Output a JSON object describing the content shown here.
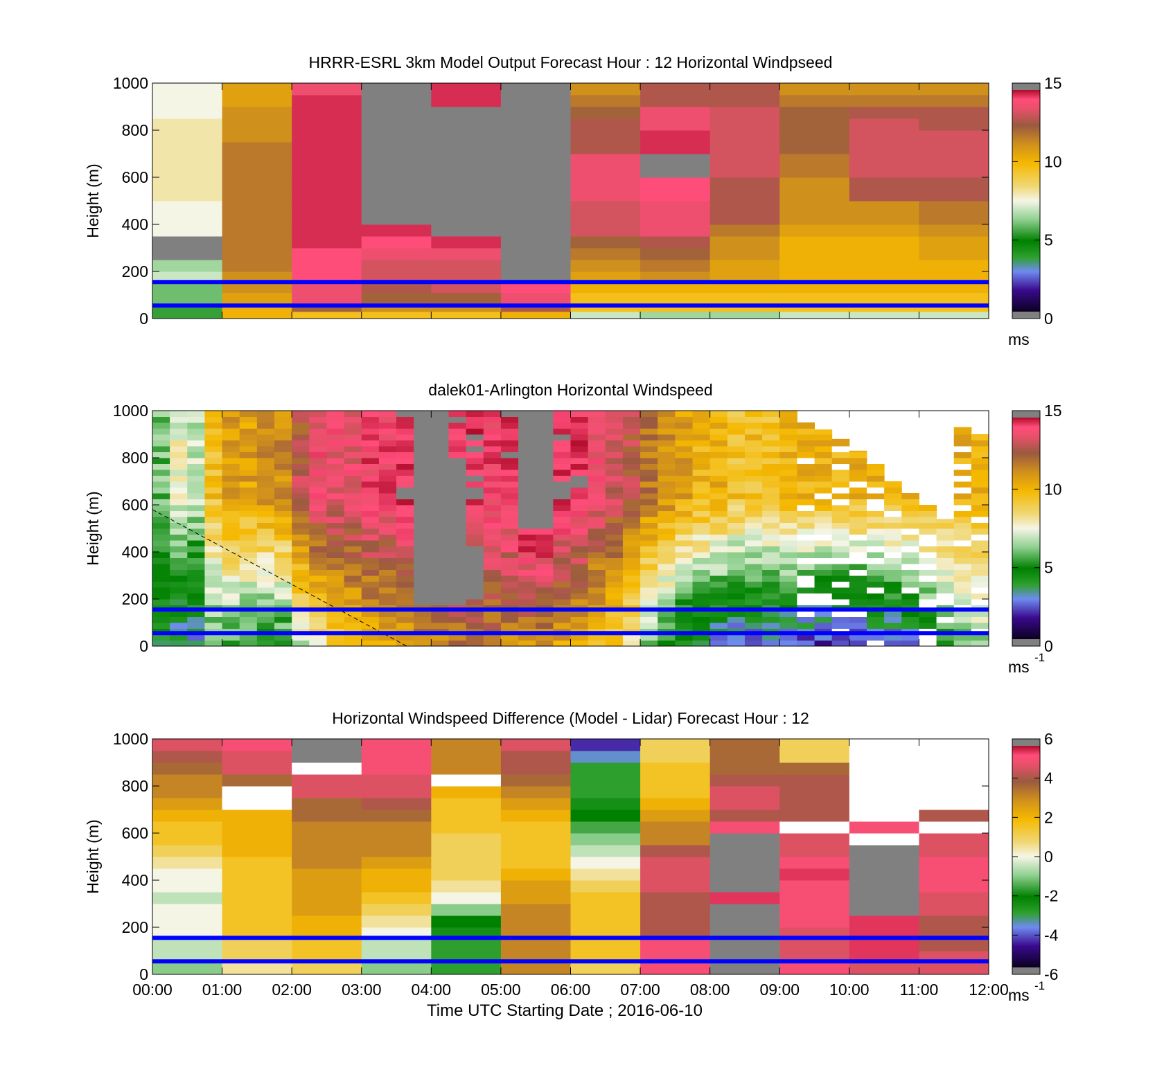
{
  "figure": {
    "xlabel": "Time UTC  Starting Date ; 2016-06-10",
    "x_ticks": [
      "00:00",
      "01:00",
      "02:00",
      "03:00",
      "04:00",
      "05:00",
      "06:00",
      "07:00",
      "08:00",
      "09:00",
      "10:00",
      "11:00",
      "12:00"
    ],
    "y_ticks": [
      "0",
      "200",
      "400",
      "600",
      "800",
      "1000"
    ],
    "ylabel": "Height (m)"
  },
  "chart_data": [
    {
      "type": "heatmap",
      "title": "HRRR-ESRL 3km Model Output   Forecast Hour : 12 Horizontal Windpseed",
      "xlabel": "",
      "ylabel": "Height (m)",
      "xlim": [
        0,
        12
      ],
      "ylim": [
        0,
        1000
      ],
      "colorbar": {
        "range": [
          0,
          15
        ],
        "ticks": [
          "0",
          "5",
          "10",
          "15"
        ],
        "label": "ms",
        "label_sup": ""
      },
      "levels_m": [
        0,
        30,
        60,
        110,
        160,
        200,
        250,
        300,
        350,
        400,
        450,
        500,
        550,
        600,
        650,
        700,
        750,
        800,
        850,
        900,
        950,
        1000
      ],
      "columns": [
        {
          "t": 0,
          "v": [
            5.5,
            5.5,
            6,
            6,
            7,
            6.5,
            16,
            16,
            7.5,
            7.5,
            7.5,
            8,
            8,
            8,
            8,
            8,
            8,
            8,
            7.5,
            7.5,
            7.5
          ]
        },
        {
          "t": 1,
          "v": [
            10,
            10,
            10.5,
            11,
            11,
            11.5,
            11.5,
            11.5,
            11.5,
            11.5,
            11.5,
            11.5,
            11.5,
            11.5,
            11.5,
            11.5,
            11,
            11,
            11,
            10.5,
            10.5
          ]
        },
        {
          "t": 2,
          "v": [
            9.5,
            12,
            13.5,
            13.5,
            14,
            14,
            14,
            14.5,
            14.5,
            14.5,
            14.5,
            14.5,
            14.5,
            14.5,
            14.5,
            14.5,
            14.5,
            14.5,
            14.5,
            14.5,
            13.5
          ]
        },
        {
          "t": 3,
          "v": [
            9.5,
            11,
            12,
            12.5,
            13,
            13,
            13.5,
            14,
            14.5,
            16,
            16,
            16,
            16,
            16,
            16,
            16,
            16,
            16,
            16,
            16,
            16
          ]
        },
        {
          "t": 4,
          "v": [
            9.5,
            11,
            12,
            13,
            13,
            13,
            13.5,
            14.5,
            16,
            16,
            16,
            16,
            16,
            16,
            16,
            16,
            16,
            16,
            16,
            14.5,
            14.5
          ]
        },
        {
          "t": 5,
          "v": [
            10,
            12.5,
            13.5,
            14,
            16,
            16,
            16,
            16,
            16,
            16,
            16,
            16,
            16,
            16,
            16,
            16,
            16,
            16,
            16,
            16,
            16
          ]
        },
        {
          "t": 6,
          "v": [
            7,
            9.5,
            9.5,
            10,
            10.5,
            11,
            11.5,
            12,
            13,
            13,
            13,
            13.5,
            13.5,
            13.5,
            13.5,
            12.5,
            12.5,
            12.5,
            12,
            11.5,
            11
          ]
        },
        {
          "t": 7,
          "v": [
            6.5,
            9.5,
            9.5,
            10,
            11,
            11.5,
            12,
            12.5,
            13.5,
            13.5,
            13.5,
            14,
            14,
            16,
            16,
            14.5,
            14.5,
            13.5,
            13.5,
            12.5,
            12.5
          ]
        },
        {
          "t": 8,
          "v": [
            6.5,
            9.5,
            9.5,
            10,
            10.5,
            10.5,
            11,
            11,
            11.5,
            12.5,
            12.5,
            12.5,
            12.5,
            13,
            13,
            13,
            13,
            13,
            13,
            12.5,
            12.5
          ]
        },
        {
          "t": 9,
          "v": [
            7,
            9.5,
            9.5,
            10,
            10,
            10,
            10,
            10,
            10.5,
            11,
            11,
            11,
            11,
            11.5,
            11.5,
            12,
            12,
            12,
            12,
            11.5,
            11
          ]
        },
        {
          "t": 10,
          "v": [
            7,
            9.5,
            9.5,
            10,
            10,
            10,
            10,
            10,
            10.5,
            11,
            11,
            12.5,
            12.5,
            13,
            13,
            13,
            13,
            13,
            12.5,
            11.5,
            11
          ]
        },
        {
          "t": 11,
          "v": [
            7,
            9.5,
            9.5,
            10,
            10,
            10,
            10.5,
            10.5,
            11,
            11.5,
            11.5,
            12.5,
            12.5,
            13,
            13,
            13,
            13,
            12.5,
            12.5,
            11.5,
            11
          ]
        }
      ],
      "reference_lines_m": [
        155,
        55
      ],
      "reference_line_color": "#0000ff"
    },
    {
      "type": "heatmap",
      "title": "dalek01-Arlington  Horizontal Windspeed",
      "xlabel": "",
      "ylabel": "Height (m)",
      "xlim": [
        0,
        12
      ],
      "ylim": [
        0,
        1000
      ],
      "colorbar": {
        "range": [
          0,
          15
        ],
        "ticks": [
          "0",
          "5",
          "10",
          "15"
        ],
        "label": "ms",
        "label_sup": "-1"
      },
      "column_width_h": 0.25,
      "row_height_m": 25,
      "column_profiles": [
        {
          "t": 0.0,
          "top": 1000,
          "low": 4,
          "high": 6
        },
        {
          "t": 0.25,
          "top": 1000,
          "low": 3,
          "high": 7.5
        },
        {
          "t": 0.5,
          "top": 1000,
          "low": 3,
          "high": 7
        },
        {
          "t": 0.75,
          "top": 1000,
          "low": 5.5,
          "high": 9.5
        },
        {
          "t": 1.0,
          "top": 1000,
          "low": 5.5,
          "high": 10.5
        },
        {
          "t": 1.25,
          "top": 1000,
          "low": 5,
          "high": 10.5
        },
        {
          "t": 1.5,
          "top": 1000,
          "low": 4.5,
          "high": 11
        },
        {
          "t": 1.75,
          "top": 1000,
          "low": 5,
          "high": 11
        },
        {
          "t": 2.0,
          "top": 1000,
          "low": 7,
          "high": 12.5
        },
        {
          "t": 2.25,
          "top": 1000,
          "low": 8,
          "high": 13.5
        },
        {
          "t": 2.5,
          "top": 1000,
          "low": 9,
          "high": 13.5
        },
        {
          "t": 2.75,
          "top": 1000,
          "low": 9.5,
          "high": 13.5
        },
        {
          "t": 3.0,
          "top": 1000,
          "low": 10,
          "high": 14
        },
        {
          "t": 3.25,
          "top": 1000,
          "low": 10,
          "high": 14
        },
        {
          "t": 3.5,
          "top": 1000,
          "low": 10.5,
          "high": 14.5
        },
        {
          "t": 3.75,
          "top": 1000,
          "low": 11,
          "high": 16
        },
        {
          "t": 4.0,
          "top": 1000,
          "low": 11,
          "high": 16
        },
        {
          "t": 4.25,
          "top": 1000,
          "low": 11.5,
          "high": 14.5
        },
        {
          "t": 4.5,
          "top": 1000,
          "low": 11.5,
          "high": 14.5
        },
        {
          "t": 4.75,
          "top": 1000,
          "low": 11.5,
          "high": 14
        },
        {
          "t": 5.0,
          "top": 1000,
          "low": 11,
          "high": 14.5
        },
        {
          "t": 5.25,
          "top": 1000,
          "low": 11,
          "high": 16
        },
        {
          "t": 5.5,
          "top": 1000,
          "low": 11,
          "high": 16
        },
        {
          "t": 5.75,
          "top": 1000,
          "low": 10.5,
          "high": 14.5
        },
        {
          "t": 6.0,
          "top": 1000,
          "low": 10,
          "high": 14.5
        },
        {
          "t": 6.25,
          "top": 1000,
          "low": 9.5,
          "high": 13.5
        },
        {
          "t": 6.5,
          "top": 1000,
          "low": 9,
          "high": 13
        },
        {
          "t": 6.75,
          "top": 1000,
          "low": 8,
          "high": 12.5
        },
        {
          "t": 7.0,
          "top": 1000,
          "low": 6,
          "high": 11.5
        },
        {
          "t": 7.25,
          "top": 1000,
          "low": 5,
          "high": 11
        },
        {
          "t": 7.5,
          "top": 1000,
          "low": 4,
          "high": 10.5
        },
        {
          "t": 7.75,
          "top": 1000,
          "low": 3.5,
          "high": 10
        },
        {
          "t": 8.0,
          "top": 1000,
          "low": 3,
          "high": 10
        },
        {
          "t": 8.25,
          "top": 1000,
          "low": 2.5,
          "high": 9.5
        },
        {
          "t": 8.5,
          "top": 1000,
          "low": 2.5,
          "high": 9.5
        },
        {
          "t": 8.75,
          "top": 1000,
          "low": 2.5,
          "high": 9.5
        },
        {
          "t": 9.0,
          "top": 1000,
          "low": 2.5,
          "high": 10
        },
        {
          "t": 9.25,
          "top": 950,
          "low": 2,
          "high": 10
        },
        {
          "t": 9.5,
          "top": 920,
          "low": 2,
          "high": 10
        },
        {
          "t": 9.75,
          "top": 880,
          "low": 2,
          "high": 10
        },
        {
          "t": 10.0,
          "top": 830,
          "low": 2,
          "high": 10
        },
        {
          "t": 10.25,
          "top": 780,
          "low": 2.5,
          "high": 10
        },
        {
          "t": 10.5,
          "top": 700,
          "low": 2.5,
          "high": 10
        },
        {
          "t": 10.75,
          "top": 650,
          "low": 3,
          "high": 10
        },
        {
          "t": 11.0,
          "top": 600,
          "low": 4,
          "high": 10
        },
        {
          "t": 11.25,
          "top": 540,
          "low": 5,
          "high": 10
        },
        {
          "t": 11.5,
          "top": 930,
          "low": 6,
          "high": 10
        },
        {
          "t": 11.75,
          "top": 900,
          "low": 6.5,
          "high": 10
        }
      ],
      "missing_regions": [
        {
          "t0": 3.75,
          "t1": 4.25,
          "h0": 170,
          "h1": 550
        },
        {
          "t0": 4.0,
          "t1": 4.5,
          "h0": 170,
          "h1": 800
        },
        {
          "t0": 4.5,
          "t1": 4.75,
          "h0": 190,
          "h1": 420
        },
        {
          "t0": 5.25,
          "t1": 5.75,
          "h0": 500,
          "h1": 680
        }
      ],
      "dashed_line": {
        "t": [
          0,
          3.65
        ],
        "h": [
          580,
          0
        ]
      },
      "reference_lines_m": [
        155,
        55
      ],
      "reference_line_color": "#0000ff"
    },
    {
      "type": "heatmap",
      "title": "Horizontal Windspeed Difference (Model - Lidar) Forecast Hour : 12",
      "xlabel": "Time UTC  Starting Date ; 2016-06-10",
      "ylabel": "Height (m)",
      "xlim": [
        0,
        12
      ],
      "ylim": [
        0,
        1000
      ],
      "colorbar": {
        "range": [
          -6,
          6
        ],
        "ticks": [
          "-6",
          "-4",
          "-2",
          "0",
          "2",
          "4",
          "6"
        ],
        "label": "ms",
        "label_sup": "-1"
      },
      "levels_m": [
        0,
        50,
        100,
        150,
        200,
        250,
        300,
        350,
        400,
        450,
        500,
        550,
        600,
        650,
        700,
        750,
        800,
        850,
        900,
        950,
        1000
      ],
      "columns": [
        {
          "t": 0,
          "v": [
            -1,
            -0.5,
            -0.5,
            0,
            0,
            0,
            -0.5,
            0,
            0,
            0.5,
            1,
            1.5,
            1.5,
            2,
            2.5,
            3,
            3,
            3.5,
            4,
            4.5
          ]
        },
        {
          "t": 1,
          "v": [
            0.5,
            1,
            1,
            1.5,
            1.5,
            1.5,
            1.5,
            1.5,
            1.5,
            1.5,
            2,
            2,
            2,
            2,
            null,
            null,
            3.5,
            4.5,
            4.5,
            5
          ]
        },
        {
          "t": 2,
          "v": [
            1,
            1.5,
            1.5,
            2,
            2,
            2.5,
            2.5,
            2.5,
            2.5,
            3,
            3,
            3,
            3,
            3.5,
            3.5,
            4.5,
            4.5,
            null,
            6.5,
            6.5
          ]
        },
        {
          "t": 3,
          "v": [
            -1,
            -0.5,
            -0.5,
            0,
            0.5,
            1,
            1.5,
            2,
            2,
            2.5,
            3,
            3,
            3,
            3.5,
            4,
            4.5,
            4.5,
            5,
            5,
            5
          ]
        },
        {
          "t": 4,
          "v": [
            -3,
            -3,
            -3,
            -2.5,
            -2,
            -1,
            0,
            0.5,
            1,
            1,
            1,
            1,
            1.5,
            1.5,
            1.5,
            2,
            null,
            3,
            3,
            3
          ]
        },
        {
          "t": 5,
          "v": [
            3,
            3,
            3,
            3,
            3,
            3,
            2.5,
            2.5,
            2,
            1.5,
            1.5,
            1.5,
            1.5,
            2,
            2.5,
            3,
            3.5,
            4,
            4,
            4.5
          ]
        },
        {
          "t": 6,
          "v": [
            1,
            1.5,
            1.5,
            1.5,
            1.5,
            1.5,
            1.5,
            1,
            0.5,
            0,
            -0.5,
            -1,
            -1.5,
            -2,
            -2.5,
            -3,
            -3,
            -3,
            -3.5,
            -4.5
          ]
        },
        {
          "t": 7,
          "v": [
            5,
            5,
            5,
            4,
            4,
            4,
            4,
            4.5,
            4.5,
            4.5,
            4,
            3,
            3,
            2.5,
            2,
            1.5,
            1.5,
            1.5,
            1,
            1
          ]
        },
        {
          "t": 8,
          "v": [
            6.5,
            6.5,
            6.5,
            6.5,
            6.5,
            6.5,
            5.5,
            6.5,
            6.5,
            6.5,
            6.5,
            6.5,
            5,
            4,
            4.5,
            4.5,
            4,
            3.5,
            3.5,
            3.5
          ]
        },
        {
          "t": 9,
          "v": [
            5,
            4.5,
            4.5,
            4.5,
            5,
            5,
            5,
            5,
            5.5,
            5,
            4.5,
            4.5,
            null,
            4,
            4,
            4,
            4,
            3.5,
            1,
            1
          ]
        },
        {
          "t": 10,
          "v": [
            4.5,
            5.5,
            5.5,
            5.5,
            5.5,
            6.5,
            6.5,
            6.5,
            6.5,
            6.5,
            6.5,
            null,
            5,
            null,
            null,
            null,
            null,
            null,
            null,
            null
          ]
        },
        {
          "t": 11,
          "v": [
            4.5,
            4.5,
            4,
            4,
            4,
            4.5,
            4.5,
            5,
            5,
            5,
            4.5,
            4.5,
            null,
            4,
            null,
            null,
            null,
            null,
            null,
            null
          ]
        }
      ],
      "reference_lines_m": [
        155,
        55
      ],
      "reference_line_color": "#0000ff"
    }
  ]
}
